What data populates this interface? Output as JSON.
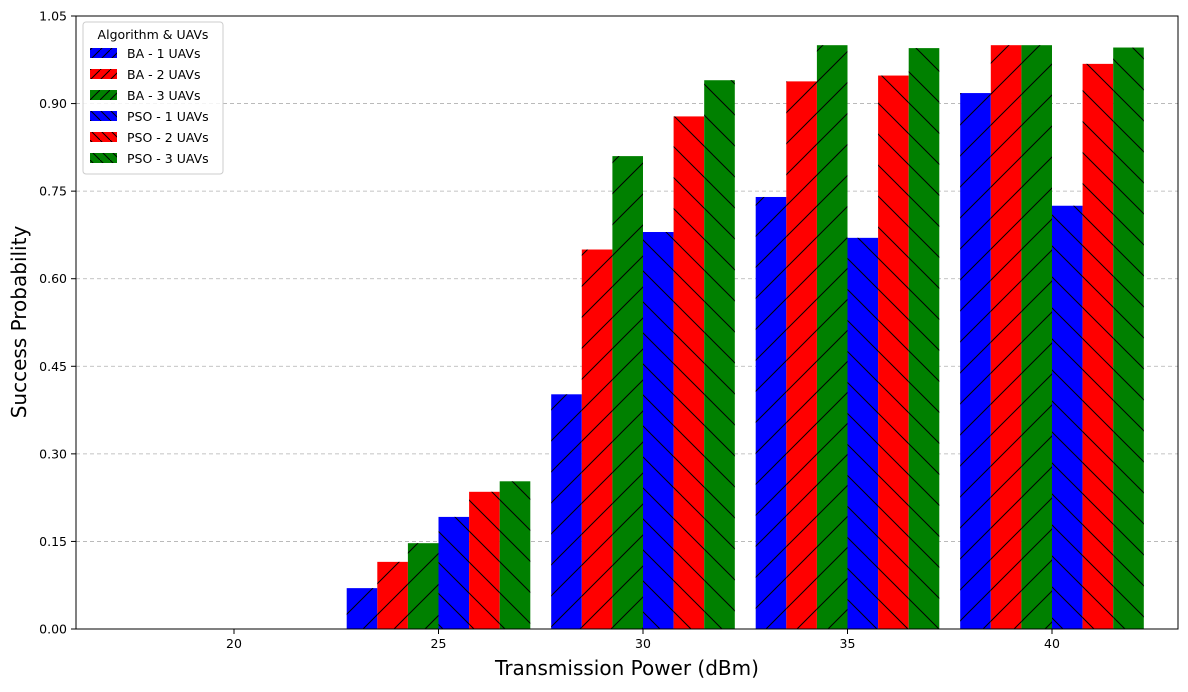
{
  "chart_data": {
    "type": "bar",
    "title": "",
    "xlabel": "Transmission Power (dBm)",
    "ylabel": "Success Probability",
    "ylim": [
      0.0,
      1.05
    ],
    "yticks": [
      "0.00",
      "0.15",
      "0.30",
      "0.45",
      "0.60",
      "0.75",
      "0.90",
      "1.05"
    ],
    "categories": [
      "20",
      "25",
      "30",
      "35",
      "40"
    ],
    "grid": "horizontal dashed",
    "legend": {
      "title": "Algorithm & UAVs",
      "placement": "top-left"
    },
    "series": [
      {
        "name": "BA - 1 UAVs",
        "color": "#0000ff",
        "hatch": "forward",
        "values": [
          0.0,
          0.07,
          0.402,
          0.74,
          0.918
        ]
      },
      {
        "name": "BA - 2 UAVs",
        "color": "#ff0000",
        "hatch": "forward",
        "values": [
          0.0,
          0.115,
          0.65,
          0.938,
          1.0
        ]
      },
      {
        "name": "BA - 3 UAVs",
        "color": "#008000",
        "hatch": "forward",
        "values": [
          0.0,
          0.147,
          0.81,
          1.0,
          1.0
        ]
      },
      {
        "name": "PSO - 1 UAVs",
        "color": "#0000ff",
        "hatch": "backward",
        "values": [
          0.0,
          0.192,
          0.68,
          0.67,
          0.725
        ]
      },
      {
        "name": "PSO - 2 UAVs",
        "color": "#ff0000",
        "hatch": "backward",
        "values": [
          0.0,
          0.235,
          0.878,
          0.948,
          0.968
        ]
      },
      {
        "name": "PSO - 3 UAVs",
        "color": "#008000",
        "hatch": "backward",
        "values": [
          0.0,
          0.253,
          0.94,
          0.995,
          0.996
        ]
      }
    ]
  }
}
